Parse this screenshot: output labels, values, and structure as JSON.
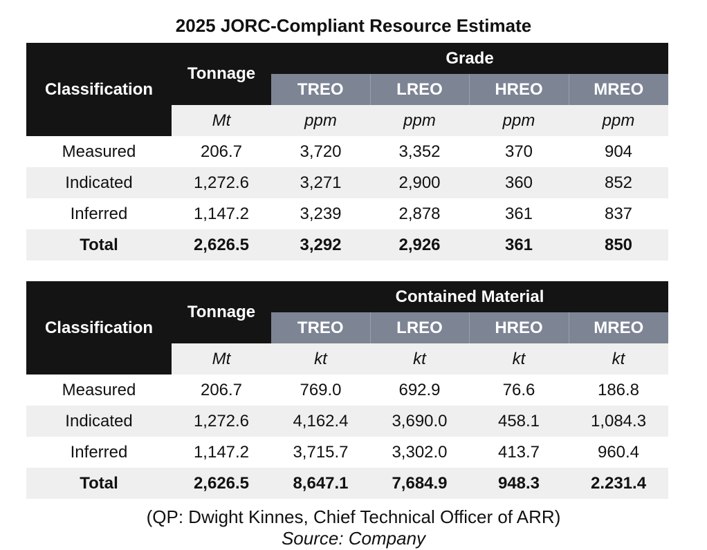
{
  "title": "2025 JORC-Compliant Resource Estimate",
  "tables": [
    {
      "classification_header": "Classification",
      "tonnage_header": "Tonnage",
      "group_header": "Grade",
      "sub_headers": [
        "TREO",
        "LREO",
        "HREO",
        "MREO"
      ],
      "units": [
        "Mt",
        "ppm",
        "ppm",
        "ppm",
        "ppm"
      ],
      "rows": [
        {
          "label": "Measured",
          "values": [
            "206.7",
            "3,720",
            "3,352",
            "370",
            "904"
          ]
        },
        {
          "label": "Indicated",
          "values": [
            "1,272.6",
            "3,271",
            "2,900",
            "360",
            "852"
          ]
        },
        {
          "label": "Inferred",
          "values": [
            "1,147.2",
            "3,239",
            "2,878",
            "361",
            "837"
          ]
        },
        {
          "label": "Total",
          "values": [
            "2,626.5",
            "3,292",
            "2,926",
            "361",
            "850"
          ]
        }
      ]
    },
    {
      "classification_header": "Classification",
      "tonnage_header": "Tonnage",
      "group_header": "Contained Material",
      "sub_headers": [
        "TREO",
        "LREO",
        "HREO",
        "MREO"
      ],
      "units": [
        "Mt",
        "kt",
        "kt",
        "kt",
        "kt"
      ],
      "rows": [
        {
          "label": "Measured",
          "values": [
            "206.7",
            "769.0",
            "692.9",
            "76.6",
            "186.8"
          ]
        },
        {
          "label": "Indicated",
          "values": [
            "1,272.6",
            "4,162.4",
            "3,690.0",
            "458.1",
            "1,084.3"
          ]
        },
        {
          "label": "Inferred",
          "values": [
            "1,147.2",
            "3,715.7",
            "3,302.0",
            "413.7",
            "960.4"
          ]
        },
        {
          "label": "Total",
          "values": [
            "2,626.5",
            "8,647.1",
            "7,684.9",
            "948.3",
            "2.231.4"
          ]
        }
      ]
    }
  ],
  "footer": {
    "qp": "(QP: Dwight Kinnes, Chief Technical Officer of ARR)",
    "source": "Source: Company"
  }
}
